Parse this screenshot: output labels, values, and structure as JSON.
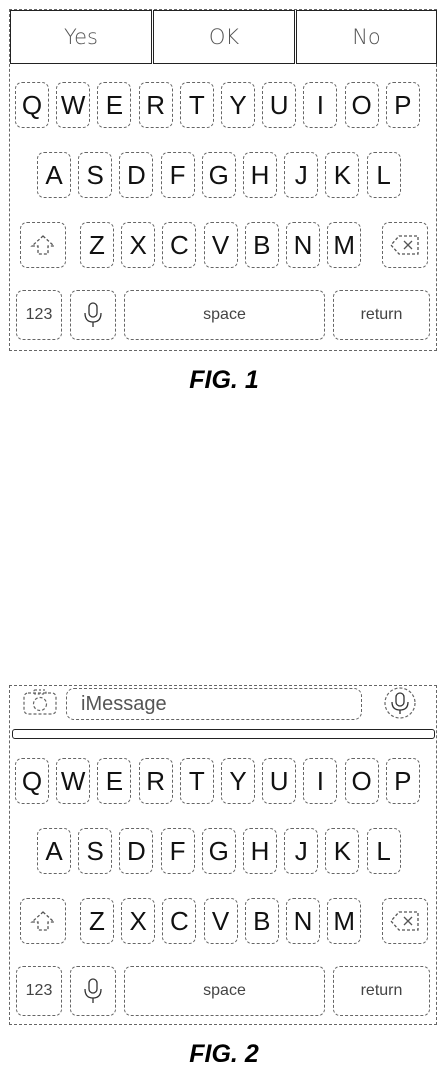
{
  "fig1": {
    "caption": "FIG. 1",
    "suggestions": [
      "Yes",
      "OK",
      "No"
    ]
  },
  "fig2": {
    "caption": "FIG. 2",
    "message_placeholder": "iMessage"
  },
  "keyboard": {
    "row1": [
      "Q",
      "W",
      "E",
      "R",
      "T",
      "Y",
      "U",
      "I",
      "O",
      "P"
    ],
    "row2": [
      "A",
      "S",
      "D",
      "F",
      "G",
      "H",
      "J",
      "K",
      "L"
    ],
    "row3": [
      "Z",
      "X",
      "C",
      "V",
      "B",
      "N",
      "M"
    ],
    "numbers_label": "123",
    "space_label": "space",
    "return_label": "return"
  },
  "icons": {
    "shift": "shift-icon",
    "delete": "delete-icon",
    "mic": "microphone-icon",
    "camera": "camera-icon"
  }
}
